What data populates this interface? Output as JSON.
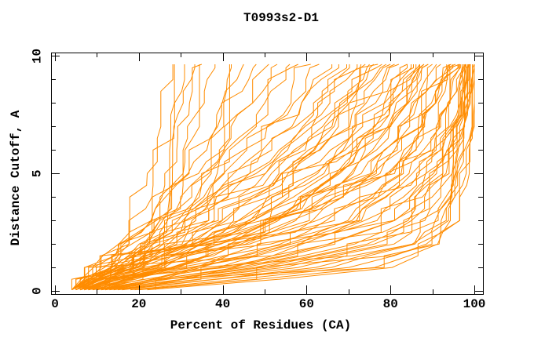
{
  "chart_data": {
    "type": "line",
    "title": "T0993s2-D1",
    "xlabel": "Percent of Residues (CA)",
    "ylabel": "Distance Cutoff, A",
    "xlim": [
      -0.94,
      102.06
    ],
    "ylim": [
      -0.13,
      10.15
    ],
    "x_ticks": [
      0,
      20,
      40,
      60,
      80,
      100
    ],
    "x_minor_step": 10,
    "x_minor_max": 100,
    "y_ticks": [
      0,
      5,
      10
    ],
    "y_minor_step": 1,
    "y_minor_max": 10,
    "grid": false,
    "legend": "none",
    "line_color": "#FF8C00",
    "axis_color": "#000000",
    "background": "#FFFFFF",
    "cutoffs": [
      0.05,
      0.5,
      1,
      2,
      3,
      5,
      7,
      9.65
    ],
    "curves": [
      [
        22,
        55,
        80,
        92,
        95,
        97,
        99,
        100
      ],
      [
        20,
        50,
        76,
        91,
        94,
        96,
        98,
        100
      ],
      [
        18,
        45,
        70,
        89,
        93,
        96,
        98,
        99.5
      ],
      [
        16,
        40,
        66,
        87,
        92,
        95,
        97,
        99
      ],
      [
        14,
        36,
        60,
        84,
        91,
        95,
        97,
        99
      ],
      [
        12,
        32,
        55,
        80,
        89,
        94,
        96,
        98.5
      ],
      [
        11,
        28,
        50,
        76,
        87,
        93,
        96,
        98
      ],
      [
        10,
        25,
        46,
        72,
        85,
        92,
        96,
        98
      ],
      [
        9,
        22,
        42,
        68,
        82,
        91,
        95,
        98
      ],
      [
        8,
        20,
        38,
        64,
        80,
        90,
        95,
        97.5
      ],
      [
        8,
        18,
        34,
        60,
        77,
        89,
        94,
        97
      ],
      [
        7,
        16,
        31,
        56,
        74,
        88,
        93,
        97
      ],
      [
        7,
        15,
        28,
        52,
        70,
        86,
        93,
        96.5
      ],
      [
        6,
        14,
        26,
        48,
        67,
        85,
        92,
        96
      ],
      [
        6,
        13,
        24,
        45,
        64,
        83,
        91,
        96
      ],
      [
        5,
        12,
        22,
        42,
        60,
        81,
        90,
        95.5
      ],
      [
        5,
        11,
        20,
        39,
        57,
        79,
        89,
        95
      ],
      [
        5,
        10,
        19,
        36,
        54,
        77,
        88,
        95
      ],
      [
        4,
        10,
        18,
        34,
        51,
        75,
        87,
        94.5
      ],
      [
        4,
        9,
        17,
        32,
        48,
        72,
        86,
        94
      ],
      [
        24,
        58,
        78,
        91,
        95,
        97.5,
        99,
        100
      ],
      [
        19,
        48,
        73,
        90,
        93.5,
        96.5,
        98.5,
        99.8
      ],
      [
        15,
        38,
        62,
        86,
        91.5,
        95.5,
        97.5,
        99.3
      ],
      [
        13,
        34,
        58,
        82,
        90,
        94.5,
        97,
        99
      ],
      [
        11,
        30,
        52,
        78,
        88,
        93.5,
        96.5,
        98.7
      ],
      [
        10,
        26,
        48,
        74,
        86,
        92.5,
        96,
        98.3
      ],
      [
        9,
        24,
        44,
        70,
        83,
        91.5,
        95.5,
        98
      ],
      [
        8,
        21,
        40,
        66,
        81,
        90.5,
        94.5,
        97.7
      ],
      [
        7,
        17,
        33,
        58,
        75,
        88.5,
        93.5,
        97.2
      ],
      [
        6,
        15,
        29,
        54,
        72,
        87,
        92.5,
        96.8
      ],
      [
        13,
        26,
        40,
        58,
        70,
        82,
        89,
        94
      ],
      [
        11,
        23,
        36,
        54,
        66,
        79,
        87,
        93
      ],
      [
        16,
        30,
        44,
        60,
        71,
        82,
        88,
        92
      ],
      [
        10,
        20,
        30,
        45,
        58,
        74,
        84,
        92
      ],
      [
        12,
        22,
        32,
        48,
        60,
        75,
        83,
        90
      ],
      [
        9,
        17,
        27,
        44,
        57,
        72,
        81,
        89
      ],
      [
        9,
        18,
        28,
        42,
        54,
        70,
        80,
        89
      ],
      [
        8,
        16,
        25,
        39,
        51,
        68,
        79,
        88
      ],
      [
        6,
        13,
        22,
        38,
        52,
        68,
        79,
        88
      ],
      [
        14,
        24,
        34,
        50,
        62,
        76,
        84,
        91
      ],
      [
        5,
        11,
        19,
        33,
        46,
        63,
        76,
        87
      ],
      [
        12,
        21,
        31,
        46,
        57,
        71,
        80,
        87
      ],
      [
        7,
        14,
        23,
        36,
        48,
        65,
        77,
        87
      ],
      [
        6,
        13,
        21,
        33,
        45,
        62,
        75,
        86
      ],
      [
        10,
        19,
        28,
        41,
        52,
        67,
        77,
        85
      ],
      [
        8,
        15,
        24,
        37,
        47,
        63,
        74,
        84
      ],
      [
        7,
        15,
        25,
        40,
        52,
        66,
        76,
        84
      ],
      [
        7,
        14,
        22,
        34,
        44,
        60,
        72,
        83
      ],
      [
        6,
        12,
        20,
        31,
        41,
        57,
        70,
        82
      ],
      [
        10,
        18,
        27,
        40,
        50,
        63,
        73,
        81
      ],
      [
        5,
        11,
        18,
        29,
        39,
        55,
        68,
        80
      ],
      [
        9,
        16,
        24,
        35,
        45,
        59,
        70,
        79
      ],
      [
        5,
        10,
        17,
        27,
        37,
        52,
        65,
        78
      ],
      [
        6,
        12,
        19,
        30,
        40,
        54,
        66,
        77
      ],
      [
        4,
        9,
        16,
        25,
        35,
        50,
        63,
        76
      ],
      [
        8,
        14,
        21,
        31,
        40,
        53,
        64,
        75
      ],
      [
        8,
        15,
        23,
        34,
        43,
        56,
        66,
        74
      ],
      [
        4,
        9,
        15,
        24,
        33,
        47,
        60,
        73
      ],
      [
        6,
        11,
        18,
        27,
        36,
        49,
        61,
        72
      ],
      [
        4,
        8,
        14,
        22,
        31,
        45,
        58,
        70
      ],
      [
        5,
        10,
        16,
        26,
        35,
        48,
        59,
        69
      ],
      [
        5,
        10,
        16,
        24,
        32,
        44,
        55,
        67
      ],
      [
        7,
        12,
        18,
        26,
        34,
        45,
        55,
        65
      ],
      [
        4,
        8,
        13,
        21,
        29,
        41,
        52,
        63
      ],
      [
        6,
        10,
        15,
        23,
        30,
        41,
        51,
        61
      ],
      [
        4,
        7,
        12,
        19,
        26,
        37,
        47,
        58
      ],
      [
        5,
        9,
        14,
        21,
        28,
        38,
        47,
        56
      ],
      [
        4,
        7,
        11,
        17,
        24,
        34,
        43,
        53
      ],
      [
        6,
        10,
        14,
        20,
        26,
        35,
        43,
        51
      ],
      [
        4,
        6,
        10,
        16,
        22,
        31,
        39,
        48
      ],
      [
        5,
        8,
        12,
        18,
        23,
        31,
        38,
        45
      ],
      [
        10,
        16,
        22,
        28,
        32,
        36,
        39,
        42
      ],
      [
        6,
        11,
        15,
        20,
        24,
        29,
        33,
        38
      ],
      [
        8,
        14,
        19,
        24,
        27,
        27,
        27,
        27
      ],
      [
        12,
        18,
        24,
        30,
        34,
        40,
        40,
        40
      ],
      [
        5,
        9,
        13,
        18,
        22,
        27,
        31,
        35
      ],
      [
        7,
        12,
        17,
        23,
        27,
        31,
        33,
        33
      ],
      [
        4,
        8,
        12,
        16,
        19,
        24,
        28,
        32
      ],
      [
        9,
        14,
        18,
        22,
        25,
        28,
        29,
        30
      ],
      [
        5,
        8,
        11,
        15,
        18,
        22,
        25,
        28
      ]
    ]
  }
}
